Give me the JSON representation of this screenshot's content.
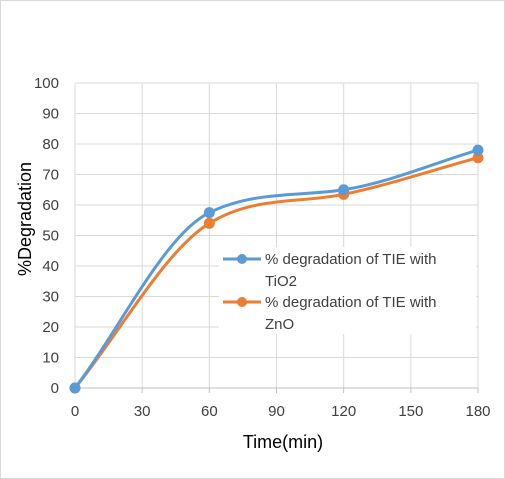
{
  "chart_data": {
    "type": "line",
    "title": "",
    "xlabel": "Time(min)",
    "ylabel": "%Degradation",
    "xlim": [
      0,
      180
    ],
    "ylim": [
      0,
      100
    ],
    "x_ticks": [
      "0",
      "30",
      "60",
      "90",
      "120",
      "150",
      "180"
    ],
    "y_ticks": [
      "0",
      "10",
      "20",
      "30",
      "40",
      "50",
      "60",
      "70",
      "80",
      "90",
      "100"
    ],
    "grid": true,
    "smooth": true,
    "legend_position": "right",
    "x": [
      0,
      60,
      120,
      180
    ],
    "series": [
      {
        "name_lines": [
          "%  degradation of TIE with",
          "TiO2"
        ],
        "color": "#5b9bd5",
        "values": [
          0,
          57.5,
          65,
          78
        ]
      },
      {
        "name_lines": [
          "%  degradation of TIE with",
          "ZnO"
        ],
        "color": "#ed7d31",
        "values": [
          0,
          54,
          63.5,
          75.5
        ]
      }
    ]
  }
}
